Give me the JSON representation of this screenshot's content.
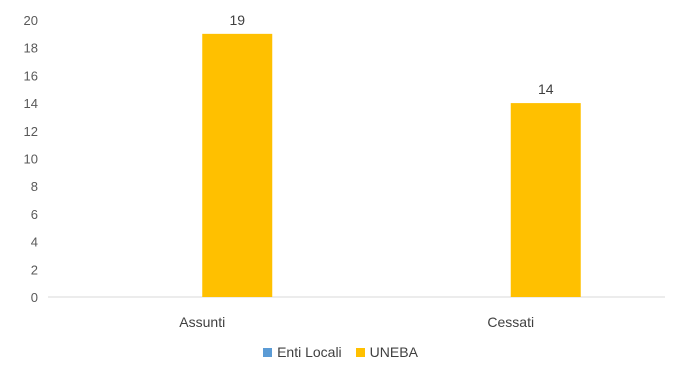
{
  "chart_data": {
    "type": "bar",
    "categories": [
      "Assunti",
      "Cessati"
    ],
    "series": [
      {
        "name": "Enti Locali",
        "values": [
          0,
          0
        ],
        "color": "#5B9BD5"
      },
      {
        "name": "UNEBA",
        "values": [
          19,
          14
        ],
        "color": "#FFC000"
      }
    ],
    "data_labels": [
      "19",
      "14"
    ],
    "ylim": [
      0,
      20
    ],
    "yticks": [
      0,
      2,
      4,
      6,
      8,
      10,
      12,
      14,
      16,
      18,
      20
    ],
    "gridlines": false,
    "legend_position": "bottom"
  }
}
